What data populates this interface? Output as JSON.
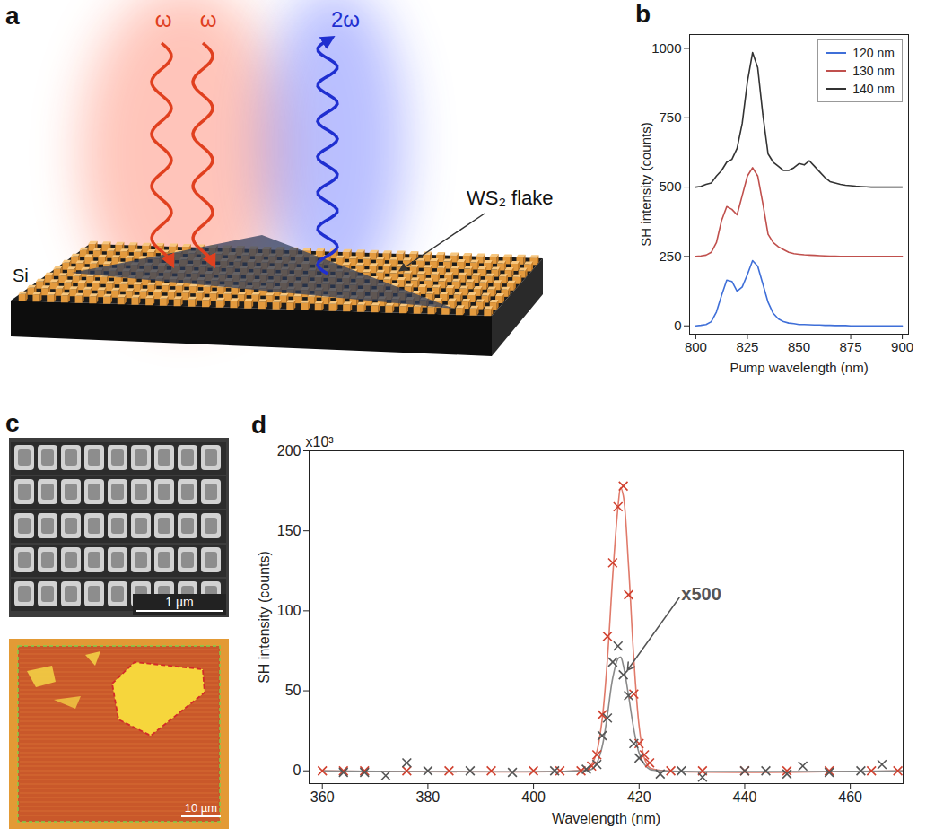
{
  "chart_data": [
    {
      "panel": "b",
      "type": "line",
      "xlabel": "Pump wavelength (nm)",
      "ylabel": "SH intensity (counts)",
      "x": [
        800,
        802.5,
        805,
        807.5,
        810,
        812.5,
        815,
        817.5,
        820,
        822.5,
        825,
        827.5,
        830,
        832.5,
        835,
        837.5,
        840,
        842.5,
        845,
        847.5,
        850,
        852.5,
        855,
        857.5,
        860,
        862.5,
        865,
        867.5,
        870,
        872.5,
        875,
        877.5,
        880,
        882.5,
        885,
        887.5,
        890,
        892.5,
        895,
        897.5,
        900
      ],
      "series": [
        {
          "name": "120 nm",
          "color": "#3f6fd8",
          "values": [
            0,
            2,
            5,
            15,
            50,
            110,
            165,
            160,
            125,
            140,
            185,
            235,
            215,
            150,
            85,
            45,
            25,
            15,
            10,
            8,
            5,
            5,
            4,
            3,
            3,
            2,
            2,
            1,
            1,
            1,
            0,
            0,
            0,
            0,
            0,
            0,
            0,
            0,
            0,
            0,
            0
          ]
        },
        {
          "name": "130 nm",
          "color": "#c0504d",
          "values": [
            250,
            252,
            255,
            265,
            300,
            380,
            430,
            420,
            400,
            470,
            540,
            570,
            540,
            440,
            330,
            300,
            285,
            275,
            265,
            260,
            258,
            256,
            255,
            254,
            253,
            252,
            251,
            251,
            250,
            250,
            250,
            250,
            250,
            250,
            250,
            250,
            250,
            250,
            250,
            250,
            250
          ]
        },
        {
          "name": "140 nm",
          "color": "#333333",
          "values": [
            500,
            503,
            510,
            515,
            540,
            560,
            590,
            600,
            640,
            730,
            880,
            985,
            930,
            760,
            620,
            590,
            575,
            560,
            560,
            570,
            585,
            580,
            595,
            575,
            555,
            535,
            520,
            515,
            510,
            507,
            505,
            503,
            502,
            501,
            500,
            500,
            500,
            500,
            500,
            500,
            500
          ]
        }
      ],
      "xlim": [
        797,
        903
      ],
      "xticks": [
        800,
        825,
        850,
        875,
        900
      ],
      "ylim": [
        -30,
        1050
      ],
      "yticks": [
        0,
        250,
        500,
        750,
        1000
      ],
      "legend": "top-right"
    },
    {
      "panel": "d",
      "type": "scatter",
      "xlabel": "Wavelength (nm)",
      "ylabel": "SH intensity (counts)",
      "y_multiplier": "x10³",
      "series": [
        {
          "type": "scatter",
          "marker": "x",
          "color": "#d0412f",
          "x": [
            360,
            364,
            368,
            376,
            384,
            392,
            400,
            405,
            409,
            411,
            412,
            413,
            414,
            415,
            416,
            417,
            418,
            419,
            420,
            421,
            422,
            426,
            432,
            440,
            448,
            456,
            464,
            469
          ],
          "values": [
            0,
            0,
            0,
            0,
            0,
            0,
            0,
            0,
            0,
            3,
            10,
            35,
            84,
            130,
            165,
            178,
            110,
            48,
            17,
            10,
            5,
            0,
            0,
            0,
            0,
            0,
            0,
            0
          ]
        },
        {
          "type": "line",
          "color": "#e07a6a",
          "x": [
            360,
            408,
            410,
            411,
            412,
            413,
            414,
            415,
            416,
            416.5,
            417,
            418,
            419,
            420,
            421,
            422,
            425,
            470
          ],
          "values": [
            0,
            0,
            1,
            4,
            12,
            32,
            70,
            122,
            165,
            177,
            172,
            128,
            70,
            28,
            8,
            2,
            0,
            0
          ]
        },
        {
          "type": "scatter",
          "marker": "x",
          "color": "#555555",
          "x": [
            364,
            368,
            372,
            376,
            380,
            388,
            396,
            404,
            410,
            412,
            413,
            414,
            415,
            416,
            417,
            418,
            419,
            420,
            424,
            428,
            432,
            440,
            444,
            448,
            451,
            456,
            462,
            466
          ],
          "values": [
            -1,
            -1,
            -3,
            5,
            0,
            0,
            -1,
            0,
            1,
            4,
            22,
            33,
            68,
            78,
            60,
            47,
            17,
            8,
            -2,
            0,
            -4,
            0,
            0,
            -2,
            3,
            -1,
            0,
            4
          ]
        },
        {
          "type": "line",
          "color": "#8a8a8a",
          "x": [
            360,
            408,
            411,
            412,
            413,
            414,
            415,
            416,
            416.5,
            417,
            418,
            419,
            420,
            421,
            422,
            425,
            470
          ],
          "values": [
            0,
            0,
            1,
            5,
            15,
            35,
            58,
            70,
            71,
            66,
            47,
            26,
            11,
            4,
            1,
            0,
            0
          ]
        }
      ],
      "xlim": [
        357.5,
        470
      ],
      "xticks": [
        360,
        380,
        400,
        420,
        440,
        460
      ],
      "ylim": [
        -8,
        200
      ],
      "yticks": [
        0,
        50,
        100,
        150,
        200
      ],
      "annotations": [
        {
          "text": "x500",
          "x": 428,
          "y": 110,
          "arrow_to": [
            417.6,
            62
          ]
        }
      ]
    }
  ],
  "schematic": {
    "panel": "a",
    "pump": [
      "ω",
      "ω"
    ],
    "signal": "2ω",
    "flake": "WS₂ flake",
    "substrate": "Si"
  },
  "images": {
    "panel": "c",
    "scale_bars": [
      "1 µm",
      "10 µm"
    ]
  }
}
